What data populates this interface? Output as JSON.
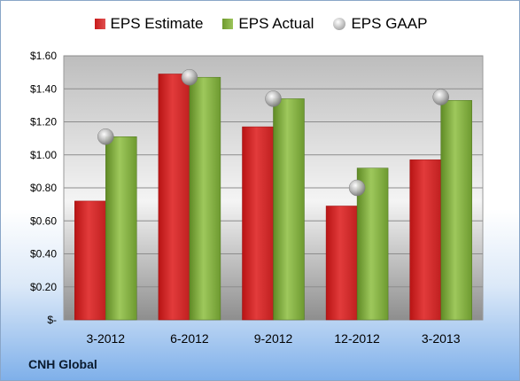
{
  "company": "CNH Global",
  "legend": {
    "estimate": "EPS Estimate",
    "actual": "EPS Actual",
    "gaap": "EPS GAAP"
  },
  "colors": {
    "estimate": "#d42a2a",
    "actual": "#86b03f",
    "gaap": "#b0b0b0"
  },
  "chart_data": {
    "type": "bar",
    "categories": [
      "3-2012",
      "6-2012",
      "9-2012",
      "12-2012",
      "3-2013"
    ],
    "series": [
      {
        "name": "EPS Estimate",
        "values": [
          0.72,
          1.49,
          1.17,
          0.69,
          0.97
        ]
      },
      {
        "name": "EPS Actual",
        "values": [
          1.11,
          1.47,
          1.34,
          0.92,
          1.33
        ]
      },
      {
        "name": "EPS GAAP",
        "values": [
          1.11,
          1.47,
          1.34,
          0.8,
          1.35
        ]
      }
    ],
    "ylim": [
      0,
      1.6
    ],
    "y_ticks": [
      0,
      0.2,
      0.4,
      0.6,
      0.8,
      1.0,
      1.2,
      1.4,
      1.6
    ],
    "y_tick_labels": [
      "$-",
      "$0.20",
      "$0.40",
      "$0.60",
      "$0.80",
      "$1.00",
      "$1.20",
      "$1.40",
      "$1.60"
    ],
    "grid": true,
    "legend_position": "top"
  }
}
